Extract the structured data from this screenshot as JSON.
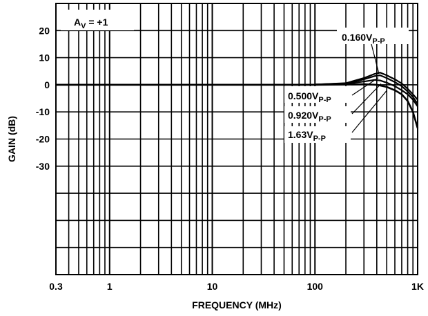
{
  "chart_data": {
    "type": "line",
    "xlabel": "FREQUENCY (MHz)",
    "ylabel": "GAIN (dB)",
    "x_scale": "log",
    "xlim": [
      0.3,
      1000
    ],
    "ylim": [
      -70,
      30
    ],
    "grid": true,
    "x_ticks": [
      {
        "value": 0.3,
        "label": "0.3"
      },
      {
        "value": 1,
        "label": "1"
      },
      {
        "value": 10,
        "label": "10"
      },
      {
        "value": 100,
        "label": "100"
      },
      {
        "value": 1000,
        "label": "1K"
      }
    ],
    "y_ticks": [
      {
        "value": 20,
        "label": "20"
      },
      {
        "value": 10,
        "label": "10"
      },
      {
        "value": 0,
        "label": "0"
      },
      {
        "value": -10,
        "label": "-10"
      },
      {
        "value": -20,
        "label": "-20"
      },
      {
        "value": -30,
        "label": "-30"
      }
    ],
    "gain_label": {
      "main": "A",
      "sub": "V",
      "rest": " = +1"
    },
    "series": [
      {
        "name": "0.160V",
        "name_sub": "P-P",
        "x": [
          0.3,
          1,
          10,
          100,
          200,
          300,
          380,
          430,
          500,
          600,
          700,
          800,
          900,
          1000
        ],
        "y": [
          0,
          0,
          0,
          0.1,
          0.6,
          2.5,
          4.0,
          4.5,
          3.5,
          2.0,
          0.5,
          -1.5,
          -3.5,
          -5.5
        ]
      },
      {
        "name": "0.500V",
        "name_sub": "P-P",
        "x": [
          0.3,
          1,
          10,
          100,
          200,
          300,
          380,
          430,
          500,
          600,
          700,
          800,
          900,
          1000
        ],
        "y": [
          0,
          0,
          0,
          0.1,
          0.5,
          2.0,
          3.2,
          3.5,
          2.5,
          1.0,
          -0.5,
          -2.5,
          -4.5,
          -7.0
        ]
      },
      {
        "name": "0.920V",
        "name_sub": "P-P",
        "x": [
          0.3,
          1,
          10,
          100,
          200,
          300,
          380,
          430,
          500,
          600,
          700,
          800,
          900,
          1000
        ],
        "y": [
          0,
          0,
          0,
          0.1,
          0.4,
          1.2,
          1.8,
          1.6,
          0.8,
          -0.5,
          -2.0,
          -3.5,
          -5.5,
          -8.0
        ]
      },
      {
        "name": "1.63V",
        "name_sub": "P-P",
        "x": [
          0.3,
          1,
          10,
          100,
          200,
          300,
          400,
          500,
          600,
          700,
          800,
          900,
          1000
        ],
        "y": [
          0,
          0,
          0,
          0,
          0.1,
          0.2,
          0.0,
          -0.8,
          -2.0,
          -3.5,
          -6.0,
          -10.0,
          -16.0
        ]
      }
    ]
  }
}
